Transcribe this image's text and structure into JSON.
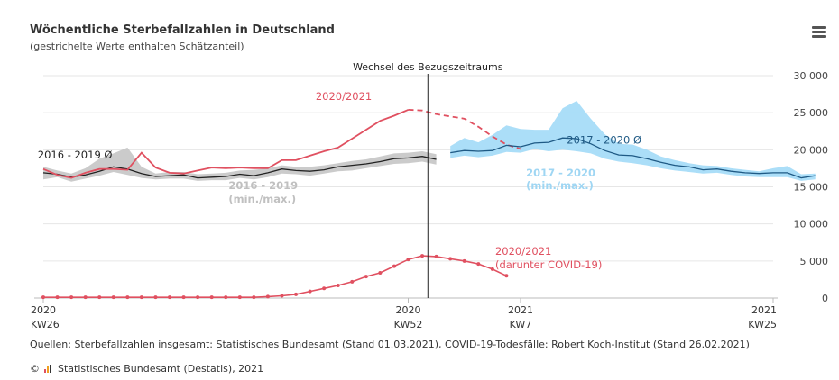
{
  "header": {
    "title": "Wöchentliche Sterbefallzahlen in Deutschland",
    "subtitle": "(gestrichelte Werte enthalten Schätzanteil)",
    "menu_icon": "hamburger-menu-icon"
  },
  "footer": {
    "source": "Quellen: Sterbefallzahlen insgesamt: Statistisches Bundesamt (Stand 01.03.2021), COVID-19-Todesfälle: Robert Koch-Institut (Stand 26.02.2021)",
    "copyright_symbol": "©",
    "copyright_text": "Statistisches Bundesamt (Destatis), 2021",
    "logo_icon": "destatis-logo-icon"
  },
  "colors": {
    "red": "#e05060",
    "black": "#222222",
    "grey_band": "#c8c8c8",
    "blue_band": "#a6dcf8",
    "blue_line": "#1f5a85",
    "grey_label": "#c0c0c0",
    "blue_label": "#9fd6f3",
    "grid": "#e6e6e6"
  },
  "chart_data": {
    "type": "line",
    "ylim": [
      0,
      30000
    ],
    "yticks": [
      0,
      5000,
      10000,
      15000,
      20000,
      25000,
      30000
    ],
    "ytick_labels": [
      "0",
      "5 000",
      "10 000",
      "15 000",
      "20 000",
      "25 000",
      "30 000"
    ],
    "x_week_range": [
      0,
      52
    ],
    "xticks": [
      {
        "week": 0,
        "label_top": "2020",
        "label_bottom": "KW26"
      },
      {
        "week": 26,
        "label_top": "2020",
        "label_bottom": "KW52"
      },
      {
        "week": 34,
        "label_top": "2021",
        "label_bottom": "KW7"
      },
      {
        "week": 52,
        "label_top": "2021",
        "label_bottom": "KW25"
      }
    ],
    "period_change": {
      "week": 27.4,
      "label": "Wechsel des Bezugszeitraums"
    },
    "series": [
      {
        "name": "2016 - 2019 Ø",
        "kind": "line",
        "color": "#222222",
        "start_week": 0,
        "values": [
          16900,
          16700,
          16300,
          16600,
          17100,
          17700,
          17400,
          16800,
          16400,
          16500,
          16600,
          16200,
          16300,
          16400,
          16700,
          16500,
          16900,
          17400,
          17200,
          17100,
          17300,
          17700,
          17900,
          18100,
          18400,
          18800,
          18900,
          19100,
          18700
        ]
      },
      {
        "name": "2016 - 2019 (min./max.)",
        "kind": "band",
        "color": "#c8c8c8",
        "start_week": 0,
        "lower": [
          16000,
          16300,
          15700,
          16100,
          16500,
          17000,
          16600,
          16200,
          16000,
          16100,
          16100,
          15800,
          15900,
          15900,
          16200,
          16000,
          16300,
          16800,
          16700,
          16500,
          16800,
          17100,
          17200,
          17500,
          17800,
          18100,
          18200,
          18400,
          18000
        ],
        "upper": [
          17700,
          17200,
          16800,
          17500,
          18800,
          19500,
          20300,
          17700,
          16800,
          17000,
          17000,
          16700,
          16800,
          16900,
          17200,
          17300,
          17500,
          17900,
          17700,
          17700,
          17900,
          18200,
          18500,
          18700,
          19100,
          19500,
          19600,
          19800,
          19400
        ]
      },
      {
        "name": "2020/2021",
        "kind": "line",
        "color": "#e05060",
        "start_week": 0,
        "values": [
          17400,
          16600,
          16200,
          16900,
          17400,
          17400,
          17300,
          19600,
          17600,
          16900,
          16800,
          17200,
          17600,
          17500,
          17600,
          17500,
          17500,
          18600,
          18600,
          19200,
          19800,
          20300,
          21500,
          22700,
          23900,
          24600,
          25400
        ],
        "dashed_start_week": 26,
        "dashed_values": [
          25400,
          25300,
          24800,
          24500,
          24200,
          23100,
          21800,
          20700,
          20100
        ]
      },
      {
        "name": "2017 - 2020 Ø",
        "kind": "line",
        "color": "#1f5a85",
        "start_week": 29,
        "values": [
          19600,
          19900,
          19800,
          19900,
          20600,
          20400,
          20900,
          21000,
          21600,
          21500,
          20800,
          19900,
          19300,
          19200,
          18800,
          18300,
          17900,
          17700,
          17300,
          17400,
          17100,
          16900,
          16800,
          16900,
          16900,
          16200,
          16500
        ]
      },
      {
        "name": "2017 - 2020 (min./max.)",
        "kind": "band",
        "color": "#a6dcf8",
        "start_week": 29,
        "lower": [
          18900,
          19200,
          19000,
          19200,
          19700,
          19600,
          20100,
          19800,
          20000,
          19800,
          19500,
          18800,
          18400,
          18200,
          17900,
          17500,
          17200,
          17000,
          16800,
          16900,
          16600,
          16400,
          16300,
          16300,
          16300,
          15800,
          16000
        ],
        "upper": [
          20500,
          21600,
          21000,
          22000,
          23300,
          22800,
          22700,
          22700,
          25600,
          26600,
          24200,
          22100,
          20800,
          20700,
          20000,
          19100,
          18600,
          18200,
          17900,
          17800,
          17500,
          17300,
          17100,
          17500,
          17800,
          16700,
          16800
        ]
      },
      {
        "name": "2020/2021 (darunter COVID-19)",
        "kind": "markers",
        "color": "#e05060",
        "start_week": 0,
        "values": [
          100,
          100,
          100,
          100,
          100,
          100,
          100,
          100,
          100,
          100,
          100,
          100,
          100,
          100,
          100,
          100,
          200,
          300,
          500,
          900,
          1300,
          1700,
          2200,
          2900,
          3400,
          4300,
          5200,
          5700,
          5600,
          5300,
          5000,
          4600,
          3900,
          3000
        ]
      }
    ],
    "annotations": [
      {
        "text": "2020/2021",
        "week": 19.4,
        "value": 26700,
        "color": "#e05060",
        "anchor": "start"
      },
      {
        "text": "2016 - 2019 Ø",
        "week": -0.4,
        "value": 18800,
        "color": "#222222",
        "anchor": "start"
      },
      {
        "text": "2016 - 2019",
        "week": 13.2,
        "value": 14700,
        "color": "#c0c0c0",
        "anchor": "start",
        "bold": true
      },
      {
        "text": "(min./max.)",
        "week": 13.2,
        "value": 12900,
        "color": "#c0c0c0",
        "anchor": "start",
        "bold": true
      },
      {
        "text": "2017 - 2020 Ø",
        "week": 37.3,
        "value": 20800,
        "color": "#1f5a85",
        "anchor": "start"
      },
      {
        "text": "2017 - 2020",
        "week": 34.4,
        "value": 16400,
        "color": "#9fd6f3",
        "anchor": "start",
        "bold": true
      },
      {
        "text": "(min./max.)",
        "week": 34.4,
        "value": 14700,
        "color": "#9fd6f3",
        "anchor": "start",
        "bold": true
      },
      {
        "text": "2020/2021",
        "week": 32.2,
        "value": 5800,
        "color": "#e05060",
        "anchor": "start"
      },
      {
        "text": "(darunter COVID-19)",
        "week": 32.2,
        "value": 4000,
        "color": "#e05060",
        "anchor": "start"
      }
    ]
  }
}
